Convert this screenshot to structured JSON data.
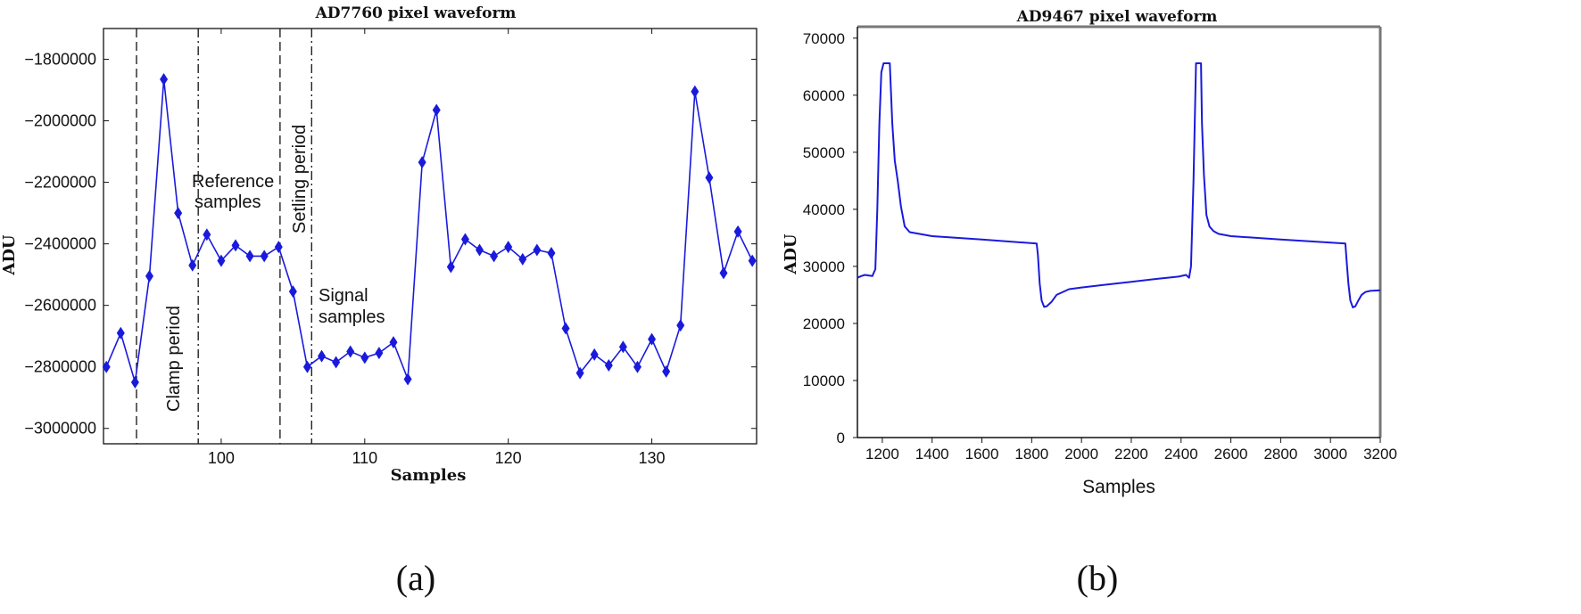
{
  "chart_data": [
    {
      "panel_label": "(a)",
      "type": "line",
      "title": "AD7760 pixel waveform",
      "xlabel": "Samples",
      "ylabel": "ADU",
      "xlim": [
        91.8,
        137.3
      ],
      "ylim": [
        -3050000,
        -1700000
      ],
      "xticks": [
        100,
        110,
        120,
        130
      ],
      "yticks": [
        -3000000,
        -2800000,
        -2600000,
        -2400000,
        -2200000,
        -2000000,
        -1800000
      ],
      "marker": "diamond",
      "line_color": "#1a1adc",
      "grid": false,
      "series": [
        {
          "x": [
            92,
            93,
            94,
            95,
            96,
            97,
            98,
            99,
            100,
            101,
            102,
            103,
            104,
            105,
            106,
            107,
            108,
            109,
            110,
            111,
            112,
            113,
            114,
            115,
            116,
            117,
            118,
            119,
            120,
            121,
            122,
            123,
            124,
            125,
            126,
            127,
            128,
            129,
            130,
            131,
            132,
            133,
            134,
            135,
            136,
            137
          ],
          "values": [
            -2800000,
            -2690000,
            -2850000,
            -2505000,
            -1865000,
            -2300000,
            -2470000,
            -2370000,
            -2455000,
            -2405000,
            -2440000,
            -2440000,
            -2410000,
            -2555000,
            -2800000,
            -2765000,
            -2785000,
            -2750000,
            -2770000,
            -2755000,
            -2720000,
            -2840000,
            -2135000,
            -1965000,
            -2475000,
            -2385000,
            -2420000,
            -2440000,
            -2410000,
            -2450000,
            -2420000,
            -2430000,
            -2675000,
            -2820000,
            -2760000,
            -2795000,
            -2735000,
            -2800000,
            -2710000,
            -2815000,
            -2665000,
            -1905000,
            -2185000,
            -2495000,
            -2360000,
            -2455000
          ]
        }
      ],
      "vlines": [
        {
          "x": 94.1,
          "style": "dashed"
        },
        {
          "x": 98.4,
          "style": "dashdot"
        },
        {
          "x": 104.1,
          "style": "dashed"
        },
        {
          "x": 106.3,
          "style": "dashdot"
        }
      ],
      "annotations": [
        "Clamp period",
        "Reference",
        "samples",
        "Setling period",
        "Signal",
        "samples"
      ]
    },
    {
      "panel_label": "(b)",
      "type": "line",
      "title": "AD9467 pixel waveform",
      "xlabel": "Samples",
      "ylabel": "ADU",
      "xlim": [
        1100,
        3200
      ],
      "ylim": [
        0,
        72000
      ],
      "xticks": [
        1200,
        1400,
        1600,
        1800,
        2000,
        2200,
        2400,
        2600,
        2800,
        3000,
        3200
      ],
      "yticks": [
        0,
        10000,
        20000,
        30000,
        40000,
        50000,
        60000,
        70000
      ],
      "line_color": "#1a1adc",
      "grid": false,
      "series": [
        {
          "x": [
            1100,
            1115,
            1130,
            1160,
            1172,
            1180,
            1188,
            1196,
            1205,
            1230,
            1240,
            1250,
            1262,
            1275,
            1290,
            1310,
            1400,
            1600,
            1820,
            1825,
            1832,
            1840,
            1850,
            1860,
            1880,
            1900,
            1950,
            2000,
            2100,
            2200,
            2300,
            2390,
            2420,
            2432,
            2440,
            2450,
            2460,
            2480,
            2484,
            2492,
            2502,
            2514,
            2530,
            2550,
            2600,
            2800,
            3060,
            3065,
            3072,
            3080,
            3090,
            3100,
            3112,
            3125,
            3140,
            3160,
            3200
          ],
          "values": [
            28000,
            28300,
            28500,
            28300,
            29500,
            40000,
            55000,
            64000,
            65600,
            65600,
            55000,
            48500,
            45000,
            40500,
            37000,
            36000,
            35300,
            34700,
            34000,
            32000,
            27000,
            24000,
            22900,
            23000,
            23800,
            25000,
            26000,
            26300,
            26800,
            27300,
            27800,
            28200,
            28500,
            28000,
            30000,
            45000,
            65600,
            65600,
            55000,
            46000,
            39000,
            37000,
            36200,
            35700,
            35300,
            34700,
            34000,
            31000,
            27000,
            24000,
            22800,
            23000,
            24000,
            25000,
            25500,
            25700,
            25800
          ]
        }
      ]
    }
  ]
}
